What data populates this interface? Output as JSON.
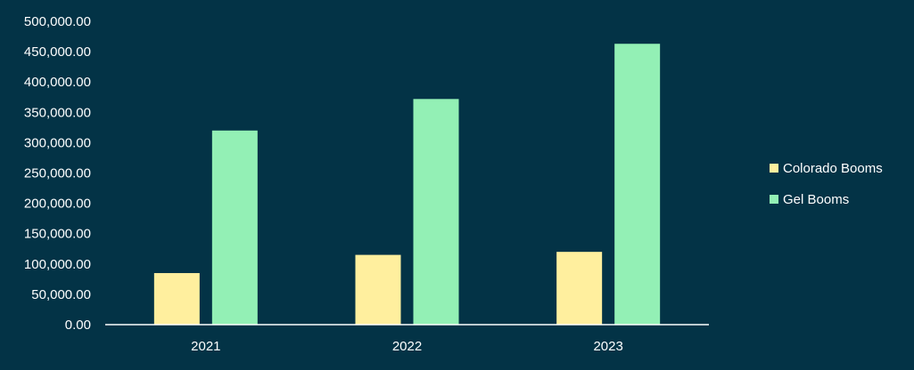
{
  "chart_data": {
    "type": "bar",
    "title": "",
    "xlabel": "",
    "ylabel": "",
    "categories": [
      "2021",
      "2022",
      "2023"
    ],
    "series": [
      {
        "name": "Colorado Booms",
        "values": [
          85000,
          115000,
          120000
        ],
        "color": "#FFEF9E"
      },
      {
        "name": "Gel Booms",
        "values": [
          320000,
          372000,
          463000
        ],
        "color": "#93F0B5"
      }
    ],
    "ylim": [
      0,
      500000
    ],
    "y_ticks": [
      0,
      50000,
      100000,
      150000,
      200000,
      250000,
      300000,
      350000,
      400000,
      450000,
      500000
    ],
    "y_tick_labels": [
      "0.00",
      "50,000.00",
      "100,000.00",
      "150,000.00",
      "200,000.00",
      "250,000.00",
      "300,000.00",
      "350,000.00",
      "400,000.00",
      "450,000.00",
      "500,000.00"
    ],
    "grid": false,
    "legend_position": "right",
    "background_color": "#033346",
    "axis_color": "#ffffff",
    "text_color": "#ffffff"
  }
}
